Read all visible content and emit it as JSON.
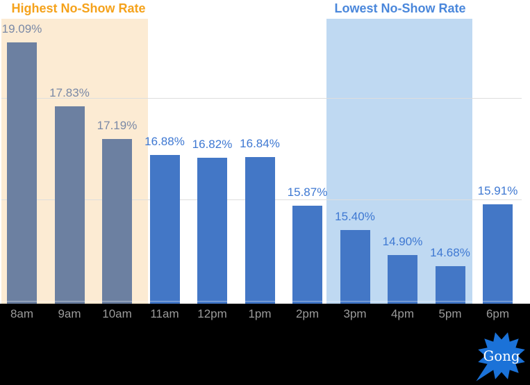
{
  "chart_data": {
    "type": "bar",
    "categories": [
      "8am",
      "9am",
      "10am",
      "11am",
      "12pm",
      "1pm",
      "2pm",
      "3pm",
      "4pm",
      "5pm",
      "6pm"
    ],
    "values": [
      19.09,
      17.83,
      17.19,
      16.88,
      16.82,
      16.84,
      15.87,
      15.4,
      14.9,
      14.68,
      15.91
    ],
    "value_labels": [
      "19.09%",
      "17.83%",
      "17.19%",
      "16.88%",
      "16.82%",
      "16.84%",
      "15.87%",
      "15.40%",
      "14.90%",
      "14.68%",
      "15.91%"
    ],
    "xlabel": "",
    "ylabel": "",
    "ylim": [
      13.94,
      20
    ],
    "gridline_values": [
      14,
      16,
      18
    ],
    "grid": "horizontal, unlabeled, y-axis hidden",
    "default_bar_color": "#4377C6",
    "default_label_color": "#3E78D2",
    "axis_label_color": "#9B9B9B",
    "gridline_color": "#DEDEDE",
    "highlights": [
      {
        "label": "Highest No-Show Rate",
        "start_index": 0,
        "end_index": 2,
        "band_color": "#FCEBD3",
        "title_color": "#F5A21B",
        "bar_color": "#6C80A1",
        "value_label_color": "#7A89A6"
      },
      {
        "label": "Lowest No-Show Rate",
        "start_index": 7,
        "end_index": 9,
        "band_color": "#BFD9F2",
        "title_color": "#4A87DB"
      }
    ]
  },
  "footer": {
    "logo_text": "Gong",
    "logo_color": "#1B72D8",
    "background": "#000000"
  }
}
